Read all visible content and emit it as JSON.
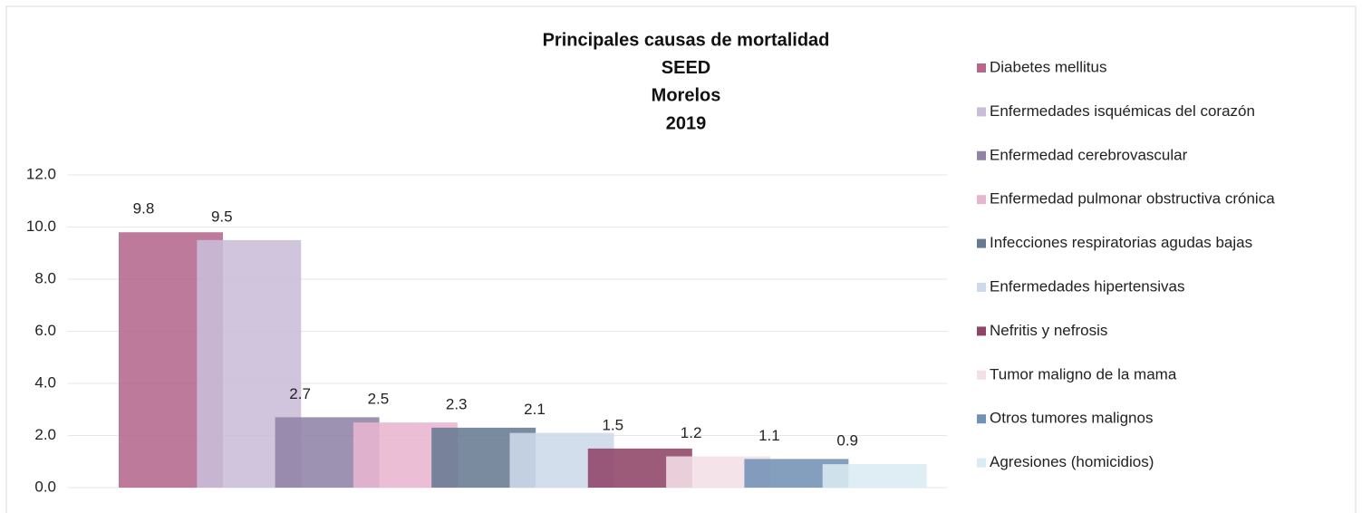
{
  "chart_data": {
    "type": "bar",
    "title": [
      "Principales causas de mortalidad",
      "SEED",
      "Morelos",
      "2019"
    ],
    "categories": [
      null
    ],
    "series": [
      {
        "name": "Diabetes mellitus",
        "color": "#b5688c",
        "values": [
          9.8
        ]
      },
      {
        "name": "Enfermedades isquémicas del corazón",
        "color": "#c9bdd8",
        "values": [
          9.5
        ]
      },
      {
        "name": "Enfermedad cerebrovascular",
        "color": "#9083a6",
        "values": [
          2.7
        ]
      },
      {
        "name": "Enfermedad pulmonar obstructiva crónica",
        "color": "#e8b5cf",
        "values": [
          2.5
        ]
      },
      {
        "name": "Infecciones respiratorias agudas bajas",
        "color": "#687a92",
        "values": [
          2.3
        ]
      },
      {
        "name": "Enfermedades hipertensivas",
        "color": "#cddaea",
        "values": [
          2.1
        ]
      },
      {
        "name": "Nefritis y nefrosis",
        "color": "#8f4468",
        "values": [
          1.5
        ]
      },
      {
        "name": "Tumor maligno de la mama",
        "color": "#f3dfe6",
        "values": [
          1.2
        ]
      },
      {
        "name": "Otros tumores malignos",
        "color": "#7391b5",
        "values": [
          1.1
        ]
      },
      {
        "name": "Agresiones (homicidios)",
        "color": "#d9ecf2",
        "values": [
          0.9
        ]
      }
    ],
    "ylim": [
      0,
      12
    ],
    "yticks": [
      {
        "value": 0,
        "label": "0.0"
      },
      {
        "value": 2,
        "label": "2.0"
      },
      {
        "value": 4,
        "label": "4.0"
      },
      {
        "value": 6,
        "label": "6.0"
      },
      {
        "value": 8,
        "label": "8.0"
      },
      {
        "value": 10,
        "label": "10.0"
      },
      {
        "value": 12,
        "label": "12.0"
      }
    ],
    "grid": true,
    "legend": "right"
  }
}
